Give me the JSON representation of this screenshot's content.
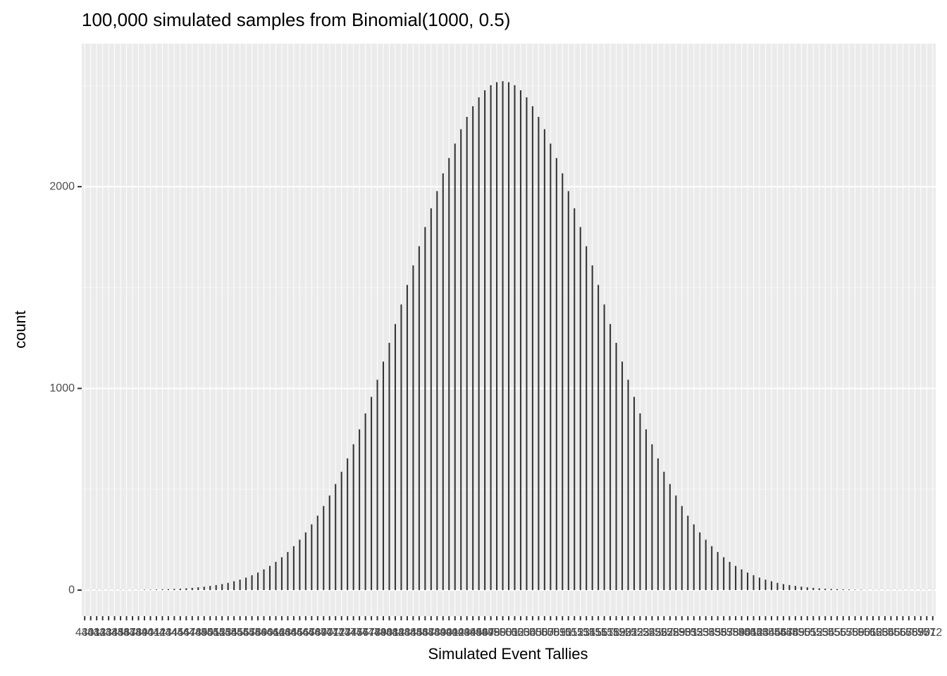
{
  "chart_data": {
    "type": "bar",
    "title": "100,000 simulated samples from Binomial(1000, 0.5)",
    "x_label": "Simulated Event Tallies",
    "y_label": "count",
    "categories": [
      430,
      431,
      432,
      433,
      434,
      435,
      436,
      437,
      438,
      439,
      440,
      441,
      442,
      443,
      444,
      445,
      446,
      447,
      448,
      449,
      450,
      451,
      452,
      453,
      454,
      455,
      456,
      457,
      458,
      459,
      460,
      461,
      462,
      463,
      464,
      465,
      466,
      467,
      468,
      469,
      470,
      471,
      472,
      473,
      474,
      475,
      476,
      477,
      478,
      479,
      480,
      481,
      482,
      483,
      484,
      485,
      486,
      487,
      488,
      489,
      490,
      491,
      492,
      493,
      494,
      495,
      496,
      497,
      498,
      499,
      500,
      501,
      502,
      503,
      504,
      505,
      506,
      507,
      508,
      509,
      510,
      511,
      512,
      513,
      514,
      515,
      516,
      517,
      518,
      519,
      520,
      521,
      522,
      523,
      524,
      525,
      526,
      527,
      528,
      529,
      530,
      531,
      532,
      533,
      534,
      535,
      536,
      537,
      538,
      539,
      540,
      541,
      542,
      543,
      544,
      545,
      546,
      547,
      548,
      549,
      550,
      551,
      552,
      553,
      554,
      555,
      556,
      557,
      558,
      559,
      560,
      561,
      562,
      563,
      564,
      565,
      566,
      567,
      568,
      569,
      570,
      571,
      572
    ],
    "values": [
      1,
      1,
      1,
      1,
      1,
      1,
      1,
      1,
      1,
      1,
      2,
      2,
      3,
      4,
      5,
      6,
      7,
      9,
      11,
      14,
      17,
      21,
      25,
      30,
      36,
      44,
      52,
      62,
      74,
      87,
      103,
      120,
      140,
      163,
      189,
      218,
      250,
      286,
      326,
      369,
      417,
      469,
      526,
      587,
      653,
      723,
      797,
      876,
      958,
      1043,
      1133,
      1226,
      1319,
      1416,
      1513,
      1610,
      1705,
      1800,
      1893,
      1978,
      2066,
      2142,
      2214,
      2285,
      2346,
      2399,
      2443,
      2478,
      2503,
      2518,
      2523,
      2518,
      2503,
      2478,
      2443,
      2399,
      2346,
      2285,
      2214,
      2142,
      2066,
      1978,
      1893,
      1800,
      1705,
      1610,
      1513,
      1416,
      1319,
      1226,
      1133,
      1043,
      958,
      876,
      797,
      723,
      653,
      587,
      526,
      469,
      417,
      369,
      326,
      286,
      250,
      218,
      189,
      163,
      140,
      120,
      103,
      87,
      74,
      62,
      52,
      44,
      36,
      30,
      25,
      21,
      17,
      14,
      11,
      9,
      7,
      6,
      5,
      4,
      3,
      2,
      2,
      1,
      1,
      1,
      1,
      1,
      1,
      1,
      1,
      1,
      1,
      1,
      1
    ],
    "color": "#333333",
    "ylim": [
      -129,
      2709
    ],
    "yticks": [
      0,
      1000,
      2000
    ],
    "yminor": [
      500,
      1500,
      2500
    ],
    "grid": true
  }
}
